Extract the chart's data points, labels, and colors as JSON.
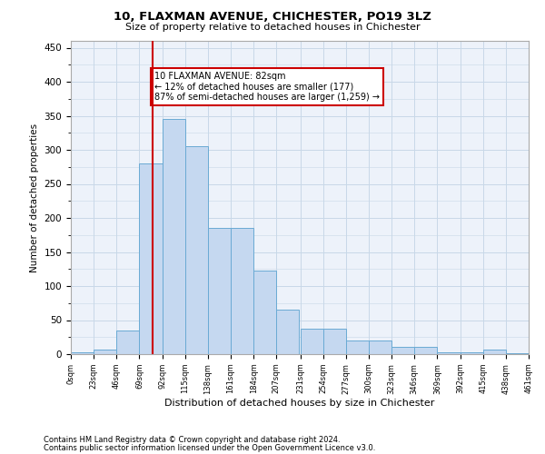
{
  "title": "10, FLAXMAN AVENUE, CHICHESTER, PO19 3LZ",
  "subtitle": "Size of property relative to detached houses in Chichester",
  "xlabel": "Distribution of detached houses by size in Chichester",
  "ylabel": "Number of detached properties",
  "footer_line1": "Contains HM Land Registry data © Crown copyright and database right 2024.",
  "footer_line2": "Contains public sector information licensed under the Open Government Licence v3.0.",
  "annotation_line1": "10 FLAXMAN AVENUE: 82sqm",
  "annotation_line2": "← 12% of detached houses are smaller (177)",
  "annotation_line3": "87% of semi-detached houses are larger (1,259) →",
  "property_size": 82,
  "bin_edges": [
    0,
    23,
    46,
    69,
    92,
    115,
    138,
    161,
    184,
    207,
    231,
    254,
    277,
    300,
    323,
    346,
    369,
    392,
    415,
    438,
    461
  ],
  "bar_values": [
    3,
    7,
    35,
    280,
    345,
    305,
    185,
    185,
    123,
    65,
    38,
    37,
    20,
    20,
    11,
    11,
    3,
    3,
    7,
    2
  ],
  "bar_color": "#c5d8f0",
  "bar_edge_color": "#6aaad4",
  "vline_color": "#cc0000",
  "annotation_box_color": "#cc0000",
  "grid_color": "#c8d8e8",
  "background_color": "#edf2fa",
  "ylim": [
    0,
    460
  ],
  "yticks": [
    0,
    50,
    100,
    150,
    200,
    250,
    300,
    350,
    400,
    450
  ]
}
